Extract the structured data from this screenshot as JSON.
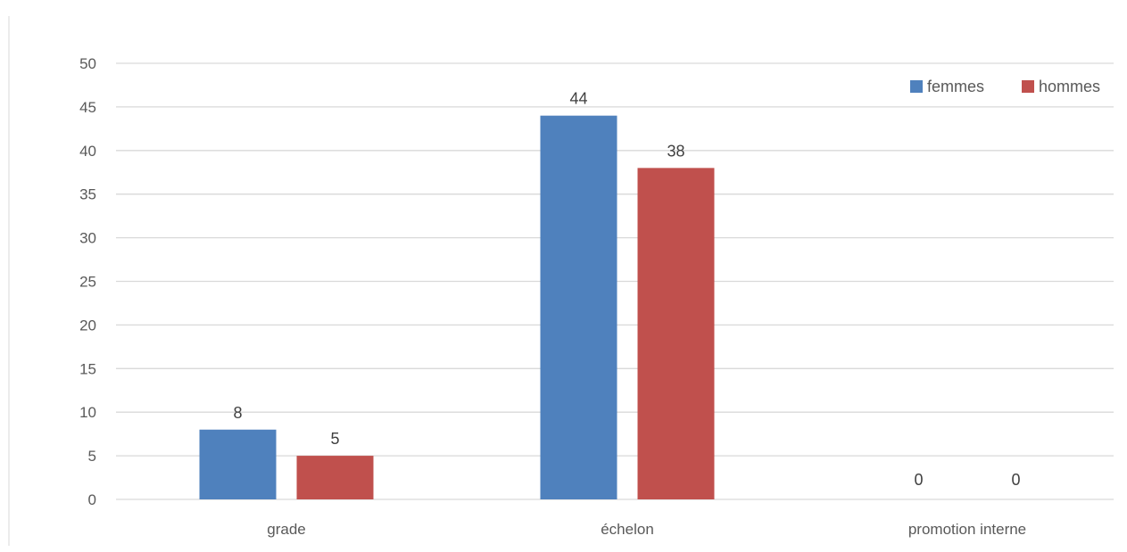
{
  "chart_data": {
    "type": "bar",
    "categories": [
      "grade",
      "échelon",
      "promotion interne"
    ],
    "series": [
      {
        "name": "femmes",
        "values": [
          8,
          44,
          0
        ],
        "color": "#4F81BD"
      },
      {
        "name": "hommes",
        "values": [
          5,
          38,
          0
        ],
        "color": "#C0504D"
      }
    ],
    "ylim": [
      0,
      50
    ],
    "yticks": [
      0,
      5,
      10,
      15,
      20,
      25,
      30,
      35,
      40,
      45,
      50
    ],
    "grid": true,
    "gridColor": "#D9D9D9",
    "legend": "top-right",
    "dataLabels": true
  }
}
